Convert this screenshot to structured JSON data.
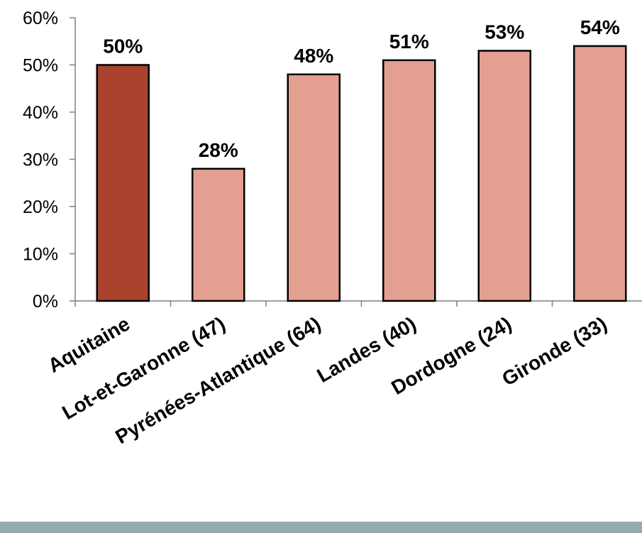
{
  "chart_data": {
    "type": "bar",
    "categories": [
      "Aquitaine",
      "Lot-et-Garonne (47)",
      "Pyrénées-Atlantique (64)",
      "Landes (40)",
      "Dordogne (24)",
      "Gironde (33)"
    ],
    "values": [
      50,
      28,
      48,
      51,
      53,
      54
    ],
    "data_labels": [
      "50%",
      "28%",
      "48%",
      "51%",
      "53%",
      "54%"
    ],
    "y_ticks": [
      "0%",
      "10%",
      "20%",
      "30%",
      "40%",
      "50%",
      "60%"
    ],
    "ylim": [
      0,
      60
    ],
    "title": "",
    "xlabel": "",
    "ylabel": "",
    "grid": false,
    "legend": "none",
    "colors": {
      "highlight": "#a9432d",
      "bar": "#e3a091",
      "bar_outline": "#000000",
      "footer_band": "#93aeaa"
    },
    "highlight_index": 0
  }
}
